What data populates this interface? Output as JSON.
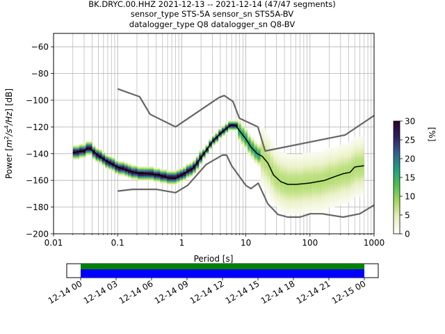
{
  "chart_data": {
    "type": "heatmap",
    "title_lines": [
      "BK.DRYC.00.HHZ   2021-12-13 -- 2021-12-14  (47/47 segments)",
      "sensor_type STS-5A sensor_sn STS5A-BV",
      "datalogger_type Q8 datalogger_sn Q8-BV"
    ],
    "xlabel": "Period [s]",
    "ylabel": "Power [m²/s⁴/Hz] [dB]",
    "ylabel_parts": {
      "a": "Power [",
      "b": "m",
      "c": "2",
      "d": "/s",
      "e": "4",
      "f": "/Hz",
      "g": "] [dB]"
    },
    "x_scale": "log",
    "xlim": [
      0.01,
      1000
    ],
    "ylim": [
      -200,
      -50
    ],
    "x_ticks": [
      0.01,
      0.1,
      1,
      10,
      100,
      1000
    ],
    "x_tick_labels": [
      "0.01",
      "0.1",
      "1",
      "10",
      "100",
      "1000"
    ],
    "y_ticks": [
      -200,
      -180,
      -160,
      -140,
      -120,
      -100,
      -80,
      -60
    ],
    "y_tick_labels": [
      "−200",
      "−180",
      "−160",
      "−140",
      "−120",
      "−100",
      "−80",
      "−60"
    ],
    "grid": true,
    "colorbar": {
      "label": "[%]",
      "range": [
        0,
        30
      ],
      "ticks": [
        0,
        5,
        10,
        15,
        20,
        25,
        30
      ],
      "tick_labels": [
        "0",
        "5",
        "10",
        "15",
        "20",
        "25",
        "30"
      ],
      "colors": [
        "#ffffff",
        "#e8f0c0",
        "#a8d860",
        "#50c050",
        "#20a080",
        "#306090",
        "#302060",
        "#300030"
      ]
    },
    "series": [
      {
        "role": "high-noise-model",
        "color": "#666666",
        "points": [
          [
            0.1,
            -91.5
          ],
          [
            0.22,
            -97.4
          ],
          [
            0.32,
            -110.5
          ],
          [
            0.8,
            -120
          ],
          [
            3.8,
            -98
          ],
          [
            4.6,
            -96.5
          ],
          [
            6.3,
            -101
          ],
          [
            7.9,
            -113.5
          ],
          [
            15.4,
            -120
          ],
          [
            20,
            -138
          ],
          [
            354.8,
            -126
          ],
          [
            1000,
            -111.5
          ]
        ]
      },
      {
        "role": "low-noise-model",
        "color": "#666666",
        "points": [
          [
            0.1,
            -168
          ],
          [
            0.17,
            -166.7
          ],
          [
            0.4,
            -166.7
          ],
          [
            0.8,
            -169.2
          ],
          [
            1.24,
            -163.7
          ],
          [
            2.4,
            -148.1
          ],
          [
            4.3,
            -141.1
          ],
          [
            5,
            -141.1
          ],
          [
            6,
            -149
          ],
          [
            10,
            -163.8
          ],
          [
            12,
            -166.2
          ],
          [
            15.6,
            -162.1
          ],
          [
            21.9,
            -177.4
          ],
          [
            31.6,
            -185.5
          ],
          [
            45,
            -187.5
          ],
          [
            70,
            -187.5
          ],
          [
            101,
            -185
          ],
          [
            154,
            -185
          ],
          [
            328,
            -187.5
          ],
          [
            600,
            -185
          ],
          [
            1000,
            -178.5
          ]
        ]
      },
      {
        "role": "mode",
        "color": "#000000",
        "points": [
          [
            0.02,
            -139.5
          ],
          [
            0.025,
            -138.5
          ],
          [
            0.03,
            -138.2
          ],
          [
            0.033,
            -136.2
          ],
          [
            0.037,
            -136
          ],
          [
            0.042,
            -138.5
          ],
          [
            0.05,
            -141.5
          ],
          [
            0.07,
            -146
          ],
          [
            0.1,
            -150
          ],
          [
            0.15,
            -153
          ],
          [
            0.2,
            -154.5
          ],
          [
            0.3,
            -155
          ],
          [
            0.45,
            -156
          ],
          [
            0.6,
            -158
          ],
          [
            0.8,
            -158.5
          ],
          [
            1,
            -156
          ],
          [
            1.5,
            -151
          ],
          [
            2,
            -143
          ],
          [
            3,
            -131
          ],
          [
            4,
            -125
          ],
          [
            5,
            -121
          ],
          [
            6,
            -118.5
          ],
          [
            7,
            -119
          ],
          [
            8,
            -123
          ],
          [
            10,
            -129
          ],
          [
            12,
            -135
          ],
          [
            15,
            -140
          ],
          [
            18,
            -142
          ],
          [
            22,
            -147
          ],
          [
            27,
            -156
          ],
          [
            35,
            -161
          ],
          [
            45,
            -163
          ],
          [
            60,
            -163
          ],
          [
            80,
            -162.5
          ],
          [
            100,
            -162
          ],
          [
            130,
            -161
          ],
          [
            170,
            -160
          ],
          [
            250,
            -157
          ],
          [
            330,
            -155
          ],
          [
            420,
            -154
          ],
          [
            500,
            -150
          ],
          [
            700,
            -149
          ]
        ]
      }
    ]
  },
  "time_axis": {
    "tick_labels": [
      "12-14 00",
      "12-14 03",
      "12-14 06",
      "12-14 09",
      "12-14 12",
      "12-14 15",
      "12-14 18",
      "12-14 21",
      "12-15 00"
    ],
    "coverage_color": "#008000",
    "data_color": "#0000ff"
  }
}
